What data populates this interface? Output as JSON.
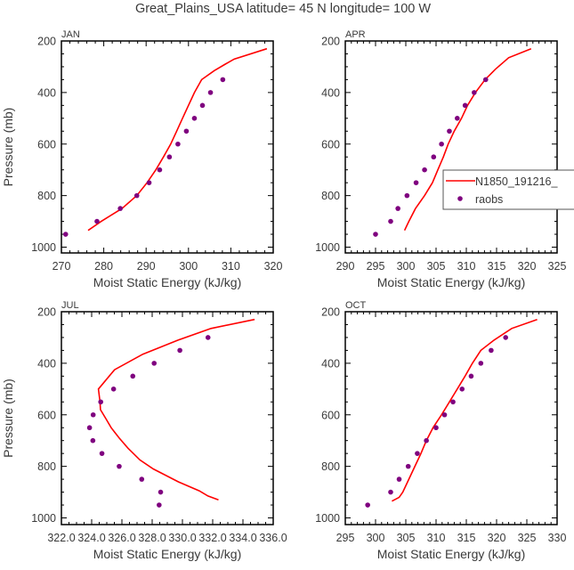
{
  "title": "Great_Plains_USA  latitude= 45 N longitude= 100 W",
  "colors": {
    "model": "#ff0000",
    "obs": "#7f007f",
    "axis": "#000000"
  },
  "legend": {
    "model_label": "N1850_191216_",
    "obs_label": "raobs"
  },
  "chart_data": {
    "type": "line",
    "xlabel": "Moist Static Energy (kJ/kg)",
    "ylabel": "Pressure (mb)",
    "ylim": [
      200,
      1025
    ],
    "yticks": [
      "200",
      "400",
      "600",
      "800",
      "1000"
    ],
    "panels": [
      {
        "month": "JAN",
        "xlim": [
          270,
          320
        ],
        "xticks": [
          "270",
          "280",
          "290",
          "300",
          "310",
          "320"
        ],
        "model": {
          "p": [
            935,
            900,
            850,
            800,
            750,
            700,
            650,
            600,
            550,
            500,
            450,
            400,
            350,
            315,
            290,
            270,
            230
          ],
          "mse": [
            276.3,
            279.4,
            284.3,
            287.8,
            290.2,
            292.3,
            294.1,
            295.8,
            297.2,
            298.6,
            300.0,
            301.4,
            303.1,
            306.1,
            308.7,
            310.8,
            318.5
          ]
        },
        "raobs": {
          "p": [
            950,
            900,
            850,
            800,
            750,
            700,
            650,
            600,
            550,
            500,
            450,
            400,
            350
          ],
          "mse": [
            271.0,
            278.4,
            283.9,
            287.8,
            290.7,
            293.2,
            295.5,
            297.5,
            299.5,
            301.4,
            303.3,
            305.2,
            308.1
          ]
        }
      },
      {
        "month": "APR",
        "xlim": [
          290,
          325
        ],
        "xticks": [
          "290",
          "295",
          "300",
          "305",
          "310",
          "315",
          "320",
          "325"
        ],
        "model": {
          "p": [
            935,
            900,
            850,
            800,
            750,
            700,
            650,
            600,
            550,
            500,
            450,
            400,
            350,
            310,
            265,
            230
          ],
          "mse": [
            299.8,
            300.5,
            301.6,
            303.1,
            304.4,
            305.3,
            306.2,
            307.0,
            308.0,
            309.2,
            310.2,
            311.5,
            313.1,
            314.8,
            317.0,
            320.7
          ]
        },
        "raobs": {
          "p": [
            950,
            900,
            850,
            800,
            750,
            700,
            650,
            600,
            550,
            500,
            450,
            400,
            350
          ],
          "mse": [
            295.0,
            297.5,
            298.7,
            300.2,
            301.7,
            303.1,
            304.6,
            305.9,
            307.2,
            308.5,
            309.8,
            311.3,
            313.2
          ]
        },
        "legend": "inside-right"
      },
      {
        "month": "JUL",
        "xlim": [
          322,
          336
        ],
        "xticks": [
          "322.0",
          "324.0",
          "326.0",
          "328.0",
          "330.0",
          "332.0",
          "334.0",
          "336.0"
        ],
        "model": {
          "p": [
            930,
            915,
            895,
            860,
            810,
            775,
            730,
            690,
            650,
            615,
            580,
            550,
            500,
            425,
            365,
            310,
            265,
            230
          ],
          "mse": [
            332.38,
            331.69,
            331.11,
            329.73,
            328.07,
            327.19,
            326.41,
            325.82,
            325.29,
            324.94,
            324.58,
            324.55,
            324.45,
            325.52,
            327.38,
            329.73,
            331.89,
            334.77
          ]
        },
        "raobs": {
          "p": [
            950,
            900,
            850,
            800,
            750,
            700,
            650,
            600,
            550,
            500,
            450,
            400,
            350,
            300
          ],
          "mse": [
            328.46,
            328.56,
            327.31,
            325.82,
            324.68,
            324.08,
            323.86,
            324.1,
            324.6,
            325.45,
            326.72,
            328.13,
            329.83,
            331.69
          ]
        }
      },
      {
        "month": "OCT",
        "xlim": [
          295,
          330
        ],
        "xticks": [
          "295",
          "300",
          "305",
          "310",
          "315",
          "320",
          "325",
          "330"
        ],
        "model": {
          "p": [
            935,
            920,
            900,
            850,
            800,
            750,
            700,
            650,
            600,
            550,
            500,
            450,
            400,
            350,
            310,
            265,
            230
          ],
          "mse": [
            302.7,
            303.9,
            304.5,
            305.5,
            306.5,
            307.5,
            308.4,
            309.5,
            310.9,
            312.2,
            313.5,
            314.8,
            316.0,
            317.4,
            319.6,
            322.5,
            326.7
          ]
        },
        "raobs": {
          "p": [
            950,
            900,
            850,
            800,
            750,
            700,
            650,
            600,
            550,
            500,
            450,
            400,
            350,
            300
          ],
          "mse": [
            298.7,
            302.5,
            303.9,
            305.4,
            306.9,
            308.4,
            310.0,
            311.4,
            312.8,
            314.3,
            315.8,
            317.4,
            319.1,
            321.5
          ]
        }
      }
    ]
  }
}
